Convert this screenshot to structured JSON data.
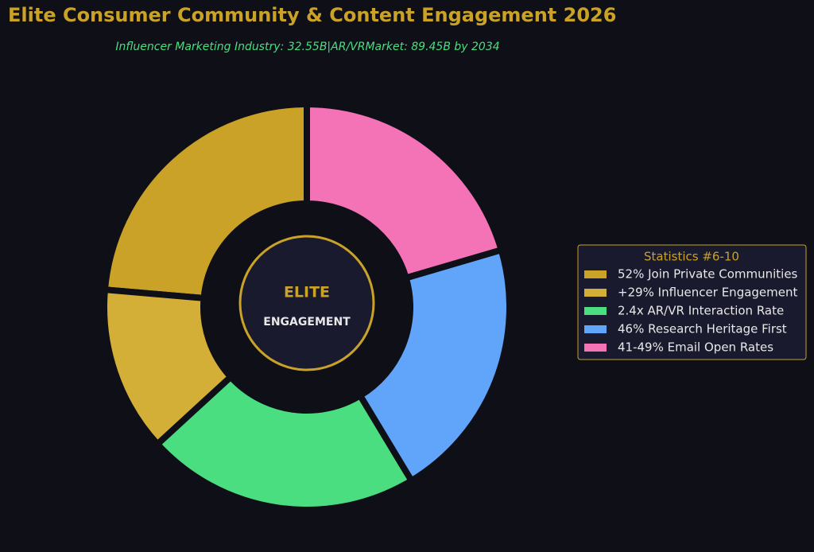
{
  "chart_data": {
    "type": "donut",
    "title": "Elite Consumer Community & Content Engagement 2026",
    "subtitle": "Influencer Marketing Industry: 32.55B|AR/VRMarket: 89.45B by 2034",
    "center_title": "ELITE",
    "center_subtitle": "ENGAGEMENT",
    "legend_title": "Statistics #6-10",
    "legend": "right",
    "categories": [
      "52% Join Private Communities",
      "+29% Influencer Engagement",
      "2.4x AR/VR Interaction Rate",
      "46% Research Heritage First",
      "41-49% Email Open Rates"
    ],
    "values": [
      52,
      29,
      48,
      46,
      45
    ],
    "colors": [
      "#c9a227",
      "#d4af37",
      "#4ade80",
      "#60a5fa",
      "#f472b6"
    ]
  }
}
